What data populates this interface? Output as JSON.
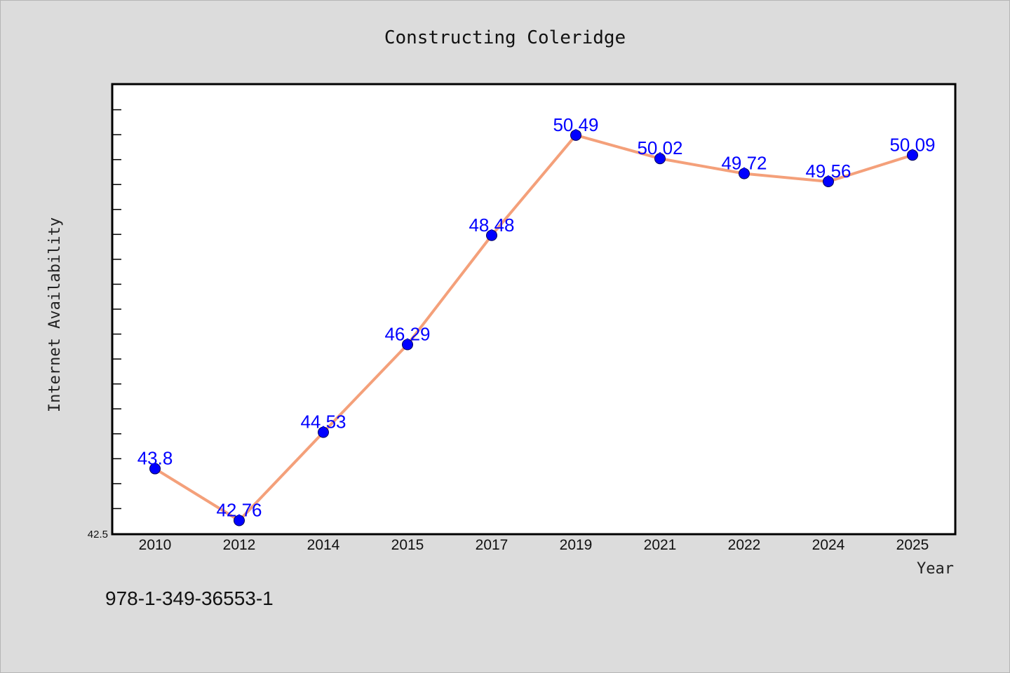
{
  "chart_data": {
    "type": "line",
    "title": "Constructing Coleridge",
    "xlabel": "Year",
    "ylabel": "Internet Availability",
    "categories": [
      "2010",
      "2012",
      "2014",
      "2015",
      "2017",
      "2019",
      "2021",
      "2022",
      "2024",
      "2025"
    ],
    "series": [
      {
        "values": [
          43.8,
          42.76,
          44.53,
          46.29,
          48.48,
          50.49,
          50.02,
          49.72,
          49.56,
          50.09
        ],
        "labels": [
          "43.8",
          "42.76",
          "44.53",
          "46.29",
          "48.48",
          "50.49",
          "50.02",
          "49.72",
          "49.56",
          "50.09"
        ]
      }
    ],
    "ylim": [
      42.5,
      51.5
    ],
    "y_tick_step": 0.5,
    "y_tick_labels": [
      "42.5"
    ],
    "grid": false,
    "line_color": "#f4a07a",
    "marker_color": "#0000ff",
    "label_color": "#0000ff"
  },
  "footnote": "978-1-349-36553-1"
}
